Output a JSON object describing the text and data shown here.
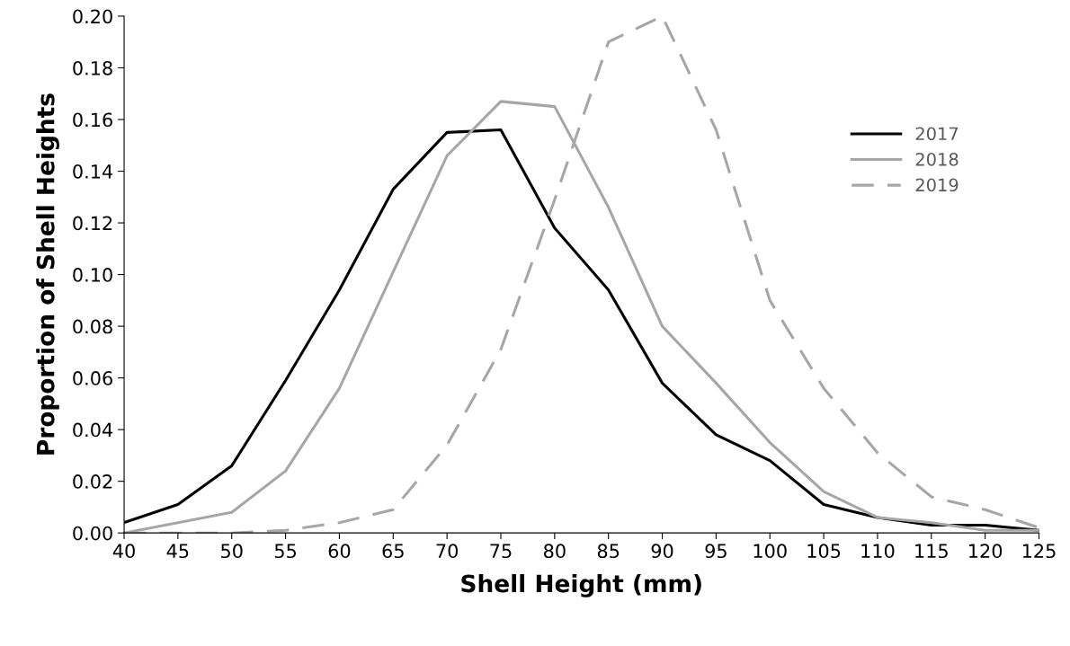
{
  "chart_data": {
    "type": "line",
    "xlabel": "Shell Height (mm)",
    "ylabel": "Proportion of Shell Heights",
    "x": [
      40,
      45,
      50,
      55,
      60,
      65,
      70,
      75,
      80,
      85,
      90,
      95,
      100,
      105,
      110,
      115,
      120,
      125
    ],
    "xlim": [
      40,
      125
    ],
    "xticks": [
      40,
      45,
      50,
      55,
      60,
      65,
      70,
      75,
      80,
      85,
      90,
      95,
      100,
      105,
      110,
      115,
      120,
      125
    ],
    "ylim": [
      0,
      0.2
    ],
    "yticks": [
      {
        "value": 0,
        "label": "0.00"
      },
      {
        "value": 0.02,
        "label": "0.02"
      },
      {
        "value": 0.04,
        "label": "0.04"
      },
      {
        "value": 0.06,
        "label": "0.06"
      },
      {
        "value": 0.08,
        "label": "0.08"
      },
      {
        "value": 0.1,
        "label": "0.10"
      },
      {
        "value": 0.12,
        "label": "0.12"
      },
      {
        "value": 0.14,
        "label": "0.14"
      },
      {
        "value": 0.16,
        "label": "0.16"
      },
      {
        "value": 0.18,
        "label": "0.18"
      },
      {
        "value": 0.2,
        "label": "0.20"
      }
    ],
    "grid": false,
    "legend": "right",
    "marker": "none",
    "series": [
      {
        "name": "2017",
        "color": "#000000",
        "line_style": "solid",
        "values": [
          0.004,
          0.011,
          0.026,
          0.059,
          0.094,
          0.133,
          0.155,
          0.156,
          0.118,
          0.094,
          0.058,
          0.038,
          0.028,
          0.011,
          0.006,
          0.003,
          0.003,
          0.001
        ]
      },
      {
        "name": "2018",
        "color": "#a6a6a6",
        "line_style": "solid",
        "values": [
          0.0,
          0.004,
          0.008,
          0.024,
          0.056,
          0.101,
          0.146,
          0.167,
          0.165,
          0.126,
          0.08,
          0.058,
          0.035,
          0.016,
          0.006,
          0.004,
          0.001,
          0.001
        ]
      },
      {
        "name": "2019",
        "color": "#a6a6a6",
        "line_style": "dashed",
        "values": [
          0.0,
          0.0,
          0.0,
          0.001,
          0.004,
          0.009,
          0.034,
          0.071,
          0.129,
          0.19,
          0.2,
          0.156,
          0.09,
          0.056,
          0.031,
          0.014,
          0.009,
          0.002
        ]
      }
    ]
  }
}
